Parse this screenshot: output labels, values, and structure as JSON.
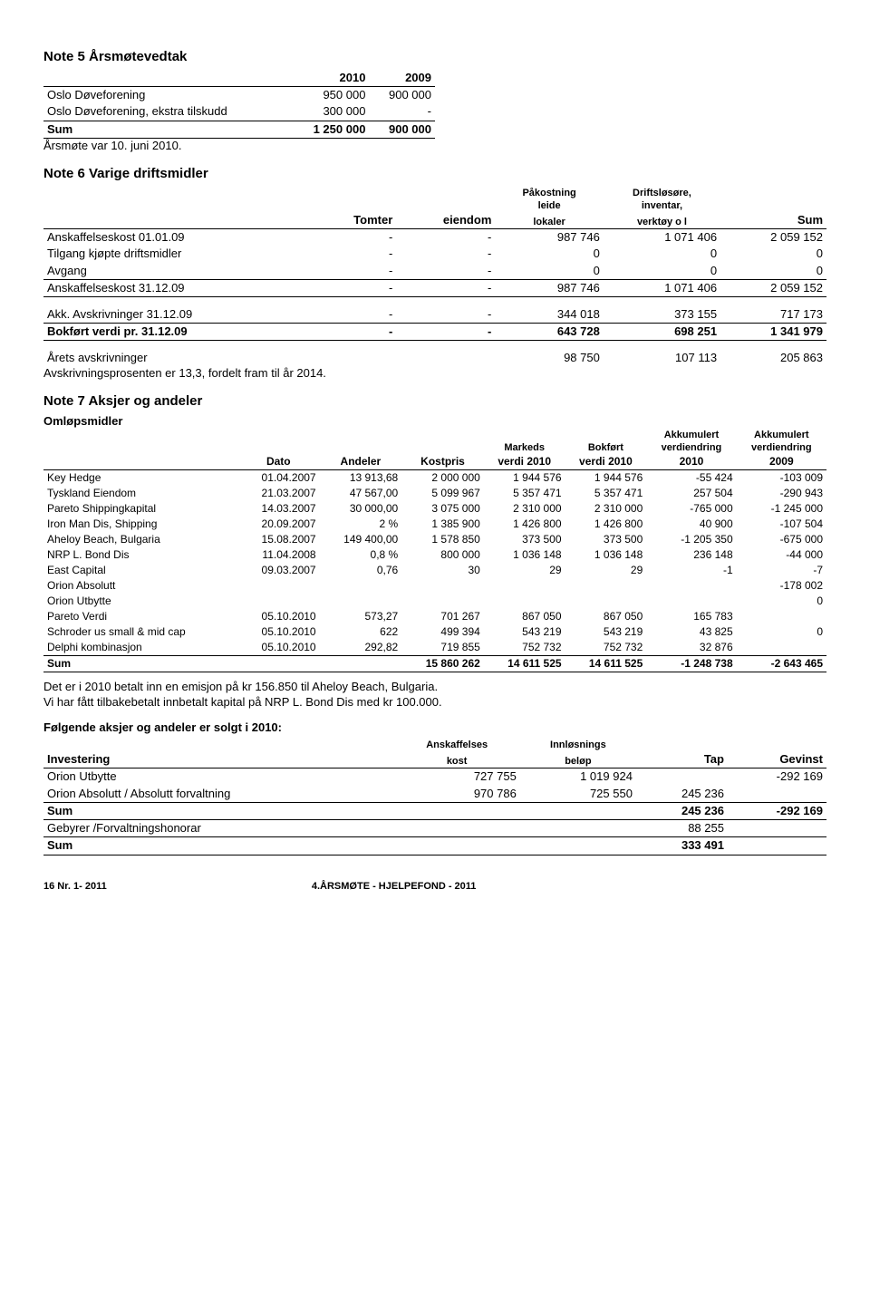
{
  "note5": {
    "title": "Note 5  Årsmøtevedtak",
    "headers": [
      "",
      "2010",
      "2009"
    ],
    "rows": [
      [
        "Oslo Døveforening",
        "950 000",
        "900 000"
      ],
      [
        "Oslo Døveforening, ekstra tilskudd",
        "300 000",
        "-"
      ]
    ],
    "sum_row": [
      "Sum",
      "1 250 000",
      "900 000"
    ],
    "footnote": "Årsmøte var 10. juni 2010."
  },
  "note6": {
    "title": "Note 6  Varige driftsmidler",
    "col_headers": {
      "tomter": "Tomter",
      "eiendom": "eiendom",
      "leide": "Påkostning leide lokaler",
      "leide_l1": "Påkostning",
      "leide_l2": "leide",
      "leide_l3": "lokaler",
      "inventar_l1": "Driftsløsøre,",
      "inventar_l2": "inventar,",
      "inventar_l3": "verktøy o l",
      "sum": "Sum"
    },
    "rows": [
      [
        "Anskaffelseskost 01.01.09",
        "-",
        "-",
        "987 746",
        "1 071 406",
        "2 059 152"
      ],
      [
        "Tilgang kjøpte driftsmidler",
        "-",
        "-",
        "0",
        "0",
        "0"
      ],
      [
        "Avgang",
        "-",
        "-",
        "0",
        "0",
        "0"
      ],
      [
        "Anskaffelseskost 31.12.09",
        "-",
        "-",
        "987 746",
        "1 071 406",
        "2 059 152"
      ]
    ],
    "rows2": [
      [
        "Akk. Avskrivninger 31.12.09",
        "-",
        "-",
        "344 018",
        "373 155",
        "717 173"
      ]
    ],
    "bokfort": [
      "Bokført verdi pr. 31.12.09",
      "-",
      "-",
      "643 728",
      "698 251",
      "1 341 979"
    ],
    "arets": [
      "Årets avskrivninger",
      "",
      "",
      "98 750",
      "107 113",
      "205 863"
    ],
    "avskriv_note": "Avskrivningsprosenten er 13,3, fordelt fram til år 2014."
  },
  "note7": {
    "title": "Note 7  Aksjer og andeler",
    "subtitle": "Omløpsmidler",
    "headers": {
      "dato": "Dato",
      "andeler": "Andeler",
      "kostpris": "Kostpris",
      "markeds_l1": "Markeds",
      "markeds_l2": "verdi 2010",
      "bokfort_l1": "Bokført",
      "bokfort_l2": "verdi 2010",
      "akk1_l1": "Akkumulert",
      "akk1_l2": "verdiendring",
      "akk1_l3": "2010",
      "akk2_l1": "Akkumulert",
      "akk2_l2": "verdiendring",
      "akk2_l3": "2009"
    },
    "rows": [
      [
        "Key Hedge",
        "01.04.2007",
        "13 913,68",
        "2 000 000",
        "1 944 576",
        "1 944 576",
        "-55 424",
        "-103 009"
      ],
      [
        "Tyskland Eiendom",
        "21.03.2007",
        "47 567,00",
        "5 099 967",
        "5 357 471",
        "5 357 471",
        "257 504",
        "-290 943"
      ],
      [
        "Pareto Shippingkapital",
        "14.03.2007",
        "30 000,00",
        "3 075 000",
        "2 310 000",
        "2 310 000",
        "-765 000",
        "-1 245 000"
      ],
      [
        "Iron Man Dis, Shipping",
        "20.09.2007",
        "2 %",
        "1 385 900",
        "1 426 800",
        "1 426 800",
        "40 900",
        "-107 504"
      ],
      [
        "Aheloy Beach, Bulgaria",
        "15.08.2007",
        "149 400,00",
        "1 578 850",
        "373 500",
        "373 500",
        "-1 205 350",
        "-675 000"
      ],
      [
        "NRP L. Bond Dis",
        "11.04.2008",
        "0,8 %",
        "800 000",
        "1 036 148",
        "1 036 148",
        "236 148",
        "-44 000"
      ],
      [
        "East Capital",
        "09.03.2007",
        "0,76",
        "30",
        "29",
        "29",
        "-1",
        "-7"
      ],
      [
        "Orion Absolutt",
        "",
        "",
        "",
        "",
        "",
        "",
        "-178 002"
      ],
      [
        "Orion Utbytte",
        "",
        "",
        "",
        "",
        "",
        "",
        "0"
      ],
      [
        "Pareto Verdi",
        "05.10.2010",
        "573,27",
        "701 267",
        "867 050",
        "867 050",
        "165 783",
        ""
      ],
      [
        "Schroder us small & mid cap",
        "05.10.2010",
        "622",
        "499 394",
        "543 219",
        "543 219",
        "43 825",
        "0"
      ],
      [
        "Delphi kombinasjon",
        "05.10.2010",
        "292,82",
        "719 855",
        "752 732",
        "752 732",
        "32 876",
        ""
      ]
    ],
    "sum_row": [
      "Sum",
      "",
      "",
      "15 860 262",
      "14 611 525",
      "14 611 525",
      "-1 248 738",
      "-2 643 465"
    ],
    "note_line1": "Det er i 2010 betalt inn en emisjon på kr 156.850 til Aheloy Beach, Bulgaria.",
    "note_line2": "Vi har fått tilbakebetalt innbetalt kapital på NRP L. Bond Dis med kr 100.000.",
    "solgt_title": "Følgende aksjer og andeler er solgt i 2010:",
    "solgt_headers": {
      "investering": "Investering",
      "ansk_l1": "Anskaffelses",
      "ansk_l2": "kost",
      "innl_l1": "Innløsnings",
      "innl_l2": "beløp",
      "tap": "Tap",
      "gevinst": "Gevinst"
    },
    "solgt_rows": [
      [
        "Orion Utbytte",
        "727 755",
        "1 019 924",
        "",
        "-292 169"
      ],
      [
        "Orion Absolutt / Absolutt forvaltning",
        "970 786",
        "725 550",
        "245 236",
        ""
      ]
    ],
    "solgt_sum": [
      "Sum",
      "",
      "",
      "245 236",
      "-292 169"
    ],
    "gebyrer": [
      "Gebyrer /Forvaltningshonorar",
      "",
      "",
      "88 255",
      ""
    ],
    "solgt_sum2": [
      "Sum",
      "",
      "",
      "333 491",
      ""
    ]
  },
  "footer": {
    "left": "16  Nr. 1- 2011",
    "right": "4.ÅRSMØTE - HJELPEFOND - 2011"
  }
}
